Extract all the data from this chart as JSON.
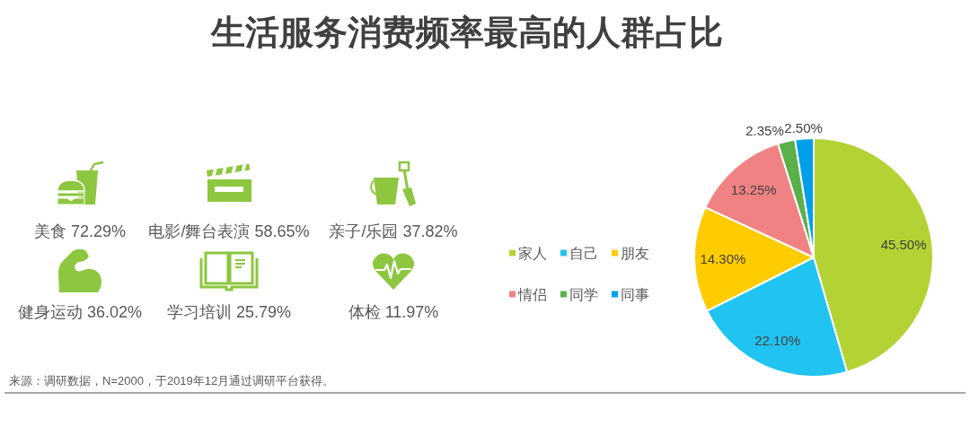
{
  "chart_data": [
    {
      "type": "other",
      "annotations": [
        "美食 72.29%",
        "电影/舞台表演 58.65%",
        "亲子/乐园 37.82%",
        "健身运动 36.02%",
        "学习培训 25.79%",
        "体检 11.97%"
      ]
    },
    {
      "type": "pie",
      "title": "生活服务消费频率最高的人群占比",
      "categories": [
        "家人",
        "自己",
        "朋友",
        "情侣",
        "同学",
        "同事"
      ],
      "values": [
        45.5,
        22.1,
        14.3,
        13.25,
        2.35,
        2.5
      ],
      "colors": [
        "#b3d334",
        "#21c3f0",
        "#ffcc00",
        "#f08283",
        "#5bb04a",
        "#00a0e9"
      ],
      "value_labels": [
        "45.50%",
        "22.10%",
        "14.30%",
        "13.25%",
        "2.35%",
        "2.50%"
      ],
      "legend": "left",
      "annotations": [
        "来源：调研数据，N=2000，于2019年12月通过调研平台获得。"
      ]
    }
  ]
}
